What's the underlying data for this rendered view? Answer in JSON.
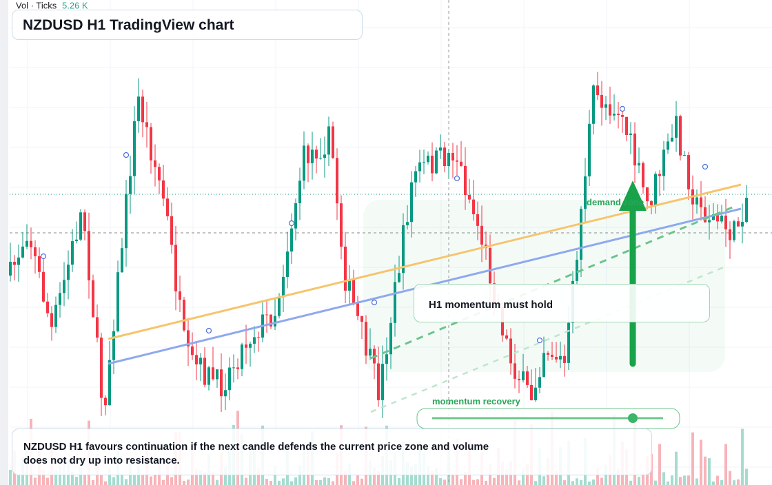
{
  "toolbar": {
    "volume_label": "Vol · Ticks",
    "volume_value": "5.26 K"
  },
  "header": {
    "title": "NZDUSD H1 TradingView chart"
  },
  "annotations": {
    "zone_label": "demand zone",
    "callout": "H1 momentum must hold",
    "slider_label": "momentum recovery"
  },
  "footer": {
    "text": "NZDUSD H1 favours continuation if the next candle defends the current price zone and volume does not dry up into resistance."
  }
}
